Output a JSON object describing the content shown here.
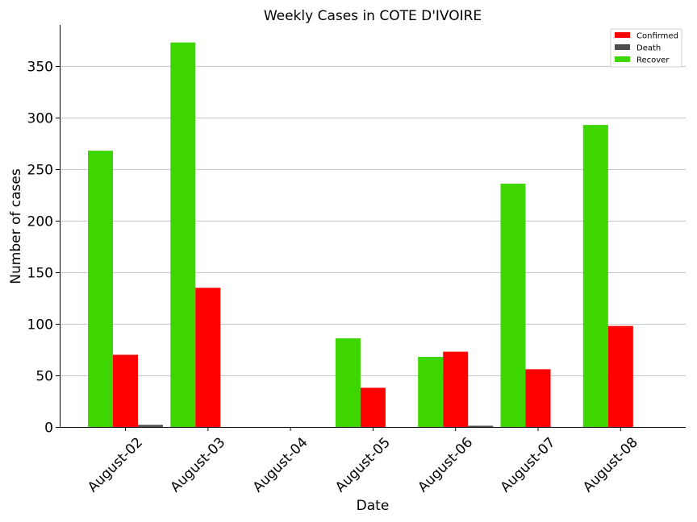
{
  "chart_data": {
    "type": "bar",
    "title": "Weekly Cases in COTE D'IVOIRE",
    "xlabel": "Date",
    "ylabel": "Number of cases",
    "categories": [
      "August-02",
      "August-03",
      "August-04",
      "August-05",
      "August-06",
      "August-07",
      "August-08"
    ],
    "series": [
      {
        "name": "Recover",
        "color": "#3dd600",
        "values": [
          268,
          373,
          0,
          86,
          68,
          236,
          293
        ]
      },
      {
        "name": "Confirmed",
        "color": "#ff0000",
        "values": [
          70,
          135,
          0,
          38,
          73,
          56,
          98
        ]
      },
      {
        "name": "Death",
        "color": "#4d4d4d",
        "values": [
          2,
          0,
          0,
          0,
          1,
          0,
          0
        ]
      }
    ],
    "legend_order": [
      "Confirmed",
      "Death",
      "Recover"
    ],
    "legend_position": "top-right",
    "ylim": [
      0,
      390
    ],
    "yticks": [
      0,
      50,
      100,
      150,
      200,
      250,
      300,
      350
    ],
    "grid": "horizontal"
  }
}
